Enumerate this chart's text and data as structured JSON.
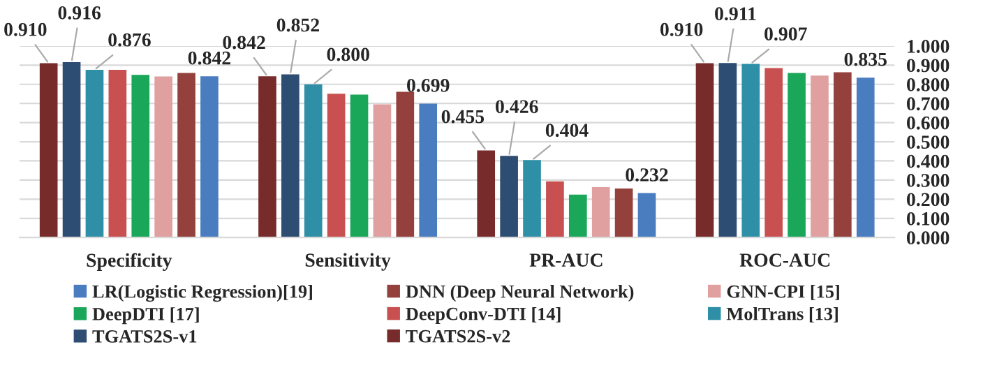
{
  "chart_data": {
    "type": "bar",
    "categories": [
      "Specificity",
      "Sensitivity",
      "PR-AUC",
      "ROC-AUC"
    ],
    "ylim": [
      0,
      1
    ],
    "yticks": [
      {
        "value": 0,
        "label": "0.000"
      },
      {
        "value": 0.1,
        "label": "0.100"
      },
      {
        "value": 0.2,
        "label": "0.200"
      },
      {
        "value": 0.3,
        "label": "0.300"
      },
      {
        "value": 0.4,
        "label": "0.400"
      },
      {
        "value": 0.5,
        "label": "0.500"
      },
      {
        "value": 0.6,
        "label": "0.600"
      },
      {
        "value": 0.7,
        "label": "0.700"
      },
      {
        "value": 0.8,
        "label": "0.800"
      },
      {
        "value": 0.9,
        "label": "0.900"
      },
      {
        "value": 1,
        "label": "1.000"
      }
    ],
    "grid": "y",
    "legend": "bottom",
    "series": [
      {
        "name": "LR(Logistic Regression)[19]",
        "color": "#4a7cc0",
        "values": [
          0.842,
          0.699,
          0.232,
          0.835
        ],
        "value_labels": [
          "0.842",
          "0.699",
          "0.232",
          "0.835"
        ]
      },
      {
        "name": "DNN (Deep Neural Network)",
        "color": "#94403c",
        "values": [
          0.859,
          0.761,
          0.256,
          0.863
        ]
      },
      {
        "name": "GNN-CPI [15]",
        "color": "#e0a0a0",
        "values": [
          0.841,
          0.695,
          0.263,
          0.846
        ]
      },
      {
        "name": "DeepDTI [17]",
        "color": "#1aa75a",
        "values": [
          0.849,
          0.746,
          0.224,
          0.859
        ]
      },
      {
        "name": "DeepConv-DTI [14]",
        "color": "#c85050",
        "values": [
          0.876,
          0.751,
          0.293,
          0.885
        ]
      },
      {
        "name": "MolTrans [13]",
        "color": "#2e8fa6",
        "values": [
          0.876,
          0.8,
          0.404,
          0.907
        ],
        "value_labels": [
          "0.876",
          "0.800",
          "0.404",
          "0.907"
        ]
      },
      {
        "name": "TGATS2S-v1",
        "color": "#2e4d72",
        "values": [
          0.916,
          0.852,
          0.426,
          0.911
        ],
        "value_labels": [
          "0.916",
          "0.852",
          "0.426",
          "0.911"
        ]
      },
      {
        "name": "TGATS2S-v2",
        "color": "#772b2b",
        "values": [
          0.91,
          0.842,
          0.455,
          0.91
        ],
        "value_labels": [
          "0.910",
          "0.842",
          "0.455",
          "0.910"
        ]
      }
    ]
  }
}
